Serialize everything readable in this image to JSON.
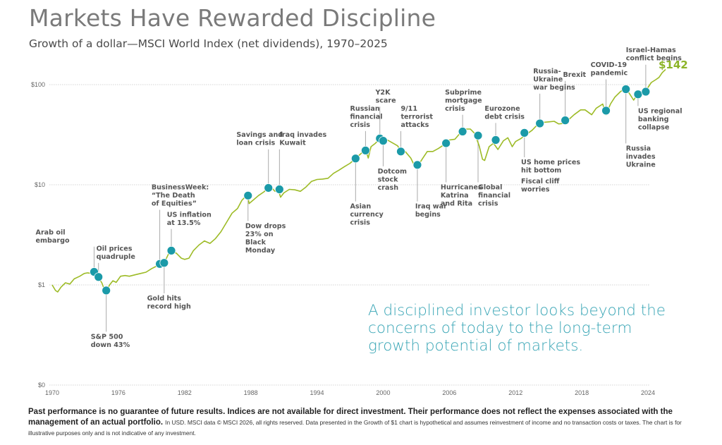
{
  "header": {
    "title": "Markets Have Rewarded Discipline",
    "subtitle": "Growth of a dollar—MSCI World Index (net dividends), 1970–2025"
  },
  "quote": "A disciplined investor looks beyond the concerns of today to the long-term growth potential of markets.",
  "disclaimer": {
    "bold": "Past performance is no guarantee of future results. Indices are not available for direct investment. Their performance does not reflect the expenses associated with the management of an actual portfolio.",
    "small": "In USD. MSCI data © MSCI 2026, all rights reserved. Data presented in the Growth of $1 chart is hypothetical and assumes reinvestment of income and no transaction costs or taxes. The chart is for illustrative purposes only and is not indicative of any investment."
  },
  "colors": {
    "line": "#9dbb26",
    "marker": "#1b9aa8",
    "end_label": "#8cb428",
    "quote": "#3aa6b6",
    "grid": "#c8c8c8",
    "leader": "#aaaaaa"
  },
  "chart_data": {
    "type": "line",
    "title": "Growth of a dollar—MSCI World Index (net dividends), 1970–2025",
    "xlabel": "",
    "ylabel": "",
    "yscale": "log",
    "grid": true,
    "xlim": [
      1970,
      2025.5
    ],
    "ylim": [
      0.1,
      142
    ],
    "x_ticks": [
      "1970",
      "1976",
      "1982",
      "1988",
      "1994",
      "2000",
      "2006",
      "2012",
      "2018",
      "2024"
    ],
    "y_ticks": [
      {
        "label": "$100",
        "value": 100
      },
      {
        "label": "$10",
        "value": 10
      },
      {
        "label": "$1",
        "value": 1
      },
      {
        "label": "$0",
        "value": 0
      }
    ],
    "end_value_label": "$142",
    "series": [
      {
        "name": "MSCI World Index (net dividends)",
        "points": [
          [
            1970.0,
            1.0
          ],
          [
            1970.3,
            0.88
          ],
          [
            1970.5,
            0.85
          ],
          [
            1970.8,
            0.95
          ],
          [
            1971.2,
            1.05
          ],
          [
            1971.6,
            1.02
          ],
          [
            1972.0,
            1.15
          ],
          [
            1972.5,
            1.22
          ],
          [
            1972.9,
            1.3
          ],
          [
            1973.2,
            1.32
          ],
          [
            1973.6,
            1.3
          ],
          [
            1973.9,
            1.28
          ],
          [
            1974.2,
            1.18
          ],
          [
            1974.5,
            1.05
          ],
          [
            1974.7,
            0.92
          ],
          [
            1974.9,
            0.86
          ],
          [
            1975.2,
            1.0
          ],
          [
            1975.5,
            1.1
          ],
          [
            1975.8,
            1.06
          ],
          [
            1976.2,
            1.22
          ],
          [
            1976.6,
            1.24
          ],
          [
            1977.0,
            1.22
          ],
          [
            1977.5,
            1.26
          ],
          [
            1978.0,
            1.3
          ],
          [
            1978.5,
            1.34
          ],
          [
            1979.0,
            1.45
          ],
          [
            1979.5,
            1.55
          ],
          [
            1979.9,
            1.62
          ],
          [
            1980.2,
            1.7
          ],
          [
            1980.6,
            2.1
          ],
          [
            1980.9,
            2.2
          ],
          [
            1981.3,
            2.05
          ],
          [
            1981.7,
            1.85
          ],
          [
            1982.0,
            1.8
          ],
          [
            1982.4,
            1.85
          ],
          [
            1982.8,
            2.2
          ],
          [
            1983.3,
            2.5
          ],
          [
            1983.8,
            2.75
          ],
          [
            1984.3,
            2.6
          ],
          [
            1984.8,
            2.9
          ],
          [
            1985.3,
            3.4
          ],
          [
            1985.8,
            4.2
          ],
          [
            1986.3,
            5.2
          ],
          [
            1986.8,
            5.8
          ],
          [
            1987.2,
            7.0
          ],
          [
            1987.7,
            8.0
          ],
          [
            1987.85,
            6.5
          ],
          [
            1988.2,
            7.0
          ],
          [
            1988.7,
            7.8
          ],
          [
            1989.2,
            8.5
          ],
          [
            1989.6,
            9.4
          ],
          [
            1989.9,
            9.3
          ],
          [
            1990.2,
            8.6
          ],
          [
            1990.5,
            8.9
          ],
          [
            1990.7,
            7.5
          ],
          [
            1991.0,
            8.3
          ],
          [
            1991.5,
            9.0
          ],
          [
            1992.0,
            8.9
          ],
          [
            1992.5,
            8.6
          ],
          [
            1993.0,
            9.5
          ],
          [
            1993.5,
            10.8
          ],
          [
            1994.0,
            11.3
          ],
          [
            1994.5,
            11.4
          ],
          [
            1995.0,
            11.6
          ],
          [
            1995.5,
            13.0
          ],
          [
            1996.0,
            14.0
          ],
          [
            1996.5,
            15.2
          ],
          [
            1997.0,
            16.4
          ],
          [
            1997.5,
            18.3
          ],
          [
            1998.0,
            20.5
          ],
          [
            1998.4,
            22.7
          ],
          [
            1998.65,
            18.5
          ],
          [
            1998.9,
            24.0
          ],
          [
            1999.3,
            26.0
          ],
          [
            1999.8,
            29.8
          ],
          [
            2000.0,
            29.5
          ],
          [
            2000.5,
            27.5
          ],
          [
            2000.9,
            26.0
          ],
          [
            2001.3,
            24.5
          ],
          [
            2001.7,
            21.0
          ],
          [
            2002.0,
            21.5
          ],
          [
            2002.5,
            18.5
          ],
          [
            2002.8,
            15.8
          ],
          [
            2003.2,
            15.8
          ],
          [
            2003.6,
            18.5
          ],
          [
            2004.0,
            21.5
          ],
          [
            2004.5,
            21.5
          ],
          [
            2005.0,
            23.0
          ],
          [
            2005.6,
            25.5
          ],
          [
            2006.0,
            28.0
          ],
          [
            2006.5,
            28.5
          ],
          [
            2007.0,
            33.0
          ],
          [
            2007.5,
            36.0
          ],
          [
            2007.9,
            36.0
          ],
          [
            2008.3,
            32.5
          ],
          [
            2008.7,
            24.5
          ],
          [
            2009.0,
            18.0
          ],
          [
            2009.2,
            17.5
          ],
          [
            2009.6,
            24.0
          ],
          [
            2010.0,
            26.0
          ],
          [
            2010.4,
            22.5
          ],
          [
            2010.9,
            27.5
          ],
          [
            2011.3,
            29.5
          ],
          [
            2011.7,
            24.0
          ],
          [
            2012.0,
            27.0
          ],
          [
            2012.5,
            29.0
          ],
          [
            2013.0,
            32.0
          ],
          [
            2013.5,
            35.0
          ],
          [
            2014.0,
            40.0
          ],
          [
            2014.5,
            42.0
          ],
          [
            2015.0,
            42.5
          ],
          [
            2015.5,
            43.0
          ],
          [
            2015.9,
            40.5
          ],
          [
            2016.4,
            41.0
          ],
          [
            2016.8,
            44.5
          ],
          [
            2017.3,
            50.0
          ],
          [
            2017.9,
            56.0
          ],
          [
            2018.3,
            56.0
          ],
          [
            2018.9,
            50.0
          ],
          [
            2019.3,
            58.0
          ],
          [
            2019.9,
            64.0
          ],
          [
            2020.2,
            50.0
          ],
          [
            2020.6,
            64.0
          ],
          [
            2021.0,
            75.0
          ],
          [
            2021.5,
            85.0
          ],
          [
            2021.95,
            92.0
          ],
          [
            2022.3,
            82.0
          ],
          [
            2022.7,
            70.0
          ],
          [
            2023.0,
            79.0
          ],
          [
            2023.5,
            86.0
          ],
          [
            2023.9,
            90.0
          ],
          [
            2024.3,
            105.0
          ],
          [
            2024.7,
            112.0
          ],
          [
            2025.0,
            118.0
          ],
          [
            2025.3,
            132.0
          ],
          [
            2025.6,
            142.0
          ]
        ]
      }
    ],
    "annotations": [
      {
        "label": [
          "Arab oil",
          "embargo"
        ],
        "year": 1973.8,
        "value": 1.35,
        "side": "above",
        "text_year": 1968.5,
        "text_value": 3.2
      },
      {
        "label": [
          "Oil prices",
          "quadruple"
        ],
        "year": 1974.2,
        "value": 1.2,
        "side": "above",
        "text_year": 1974.0,
        "text_value": 2.2
      },
      {
        "label": [
          "S&P 500",
          "down 43%"
        ],
        "year": 1974.9,
        "value": 0.88,
        "side": "below",
        "text_year": 1973.5,
        "text_value": 0.29
      },
      {
        "label": [
          "BusinessWeek:",
          "“The Death",
          "of Equities”"
        ],
        "year": 1979.75,
        "value": 1.62,
        "side": "above",
        "text_year": 1979.0,
        "text_value": 9.0
      },
      {
        "label": [
          "Gold hits",
          "record high"
        ],
        "year": 1980.15,
        "value": 1.66,
        "side": "below",
        "text_year": 1978.6,
        "text_value": 0.7
      },
      {
        "label": [
          "US inflation",
          "at 13.5%"
        ],
        "year": 1980.8,
        "value": 2.2,
        "side": "above",
        "text_year": 1980.4,
        "text_value": 4.8
      },
      {
        "label": [
          "Dow drops",
          "23% on",
          "Black",
          "Monday"
        ],
        "year": 1987.75,
        "value": 7.8,
        "side": "below",
        "text_year": 1987.5,
        "text_value": 3.7
      },
      {
        "label": [
          "Savings and",
          "loan crisis"
        ],
        "year": 1989.6,
        "value": 9.3,
        "side": "above",
        "text_year": 1986.7,
        "text_value": 30.0
      },
      {
        "label": [
          "Iraq invades",
          "Kuwait"
        ],
        "year": 1990.6,
        "value": 9.0,
        "side": "above",
        "text_year": 1990.6,
        "text_value": 30.0
      },
      {
        "label": [
          "Asian",
          "currency",
          "crisis"
        ],
        "year": 1997.5,
        "value": 18.3,
        "side": "below",
        "text_year": 1997.0,
        "text_value": 5.8
      },
      {
        "label": [
          "Russian",
          "financial",
          "crisis"
        ],
        "year": 1998.4,
        "value": 22.0,
        "side": "above",
        "text_year": 1997.0,
        "text_value": 55.0
      },
      {
        "label": [
          "Y2K",
          "scare"
        ],
        "year": 1999.7,
        "value": 29.0,
        "side": "above",
        "text_year": 1999.3,
        "text_value": 80.0
      },
      {
        "label": [
          "Dotcom",
          "stock",
          "crash"
        ],
        "year": 2000.0,
        "value": 27.5,
        "side": "below",
        "text_year": 1999.5,
        "text_value": 13.0
      },
      {
        "label": [
          "9/11",
          "terrorist",
          "attacks"
        ],
        "year": 2001.6,
        "value": 21.5,
        "side": "above",
        "text_year": 2001.6,
        "text_value": 55.0
      },
      {
        "label": [
          "Iraq war",
          "begins"
        ],
        "year": 2003.1,
        "value": 15.8,
        "side": "below",
        "text_year": 2002.9,
        "text_value": 5.8
      },
      {
        "label": [
          "Hurricanes",
          "Katrina",
          "and Rita"
        ],
        "year": 2005.7,
        "value": 26.0,
        "side": "below",
        "text_year": 2005.2,
        "text_value": 9.0
      },
      {
        "label": [
          "Subprime",
          "mortgage",
          "crisis"
        ],
        "year": 2007.2,
        "value": 34.0,
        "side": "above",
        "text_year": 2005.6,
        "text_value": 80.0
      },
      {
        "label": [
          "Global",
          "financial",
          "crisis"
        ],
        "year": 2008.6,
        "value": 31.0,
        "side": "below",
        "text_year": 2008.6,
        "text_value": 9.0
      },
      {
        "label": [
          "Eurozone",
          "debt crisis"
        ],
        "year": 2010.2,
        "value": 28.0,
        "side": "above",
        "text_year": 2009.2,
        "text_value": 55.0
      },
      {
        "label": [
          "US home prices",
          "hit bottom"
        ],
        "year": 2012.8,
        "value": 33.0,
        "side": "below",
        "text_year": 2012.5,
        "text_value": 16.0
      },
      {
        "label": [
          "Fiscal cliff",
          "worries"
        ],
        "year": 2012.8,
        "value": 33.0,
        "side": "none",
        "text_year": 2012.5,
        "text_value": 10.3
      },
      {
        "label": [
          "Russia-",
          "Ukraine",
          "war begins"
        ],
        "year": 2014.2,
        "value": 41.0,
        "side": "above",
        "text_year": 2013.6,
        "text_value": 130.0
      },
      {
        "label": [
          "Brexit"
        ],
        "year": 2016.5,
        "value": 44.0,
        "side": "above",
        "text_year": 2016.3,
        "text_value": 120.0
      },
      {
        "label": [
          "COVID-19",
          "pandemic"
        ],
        "year": 2020.2,
        "value": 55.0,
        "side": "above",
        "text_year": 2018.8,
        "text_value": 150.0
      },
      {
        "label": [
          "Russia",
          "invades",
          "Ukraine"
        ],
        "year": 2022.0,
        "value": 90.0,
        "side": "below",
        "text_year": 2022.0,
        "text_value": 22.0
      },
      {
        "label": [
          "US regional",
          "banking",
          "collapse"
        ],
        "year": 2023.1,
        "value": 80.0,
        "side": "below",
        "text_year": 2023.1,
        "text_value": 52.0
      },
      {
        "label": [
          "Israel-Hamas",
          "conflict begins"
        ],
        "year": 2023.8,
        "value": 85.0,
        "side": "above",
        "text_year": 2022.0,
        "text_value": 210.0
      }
    ]
  }
}
